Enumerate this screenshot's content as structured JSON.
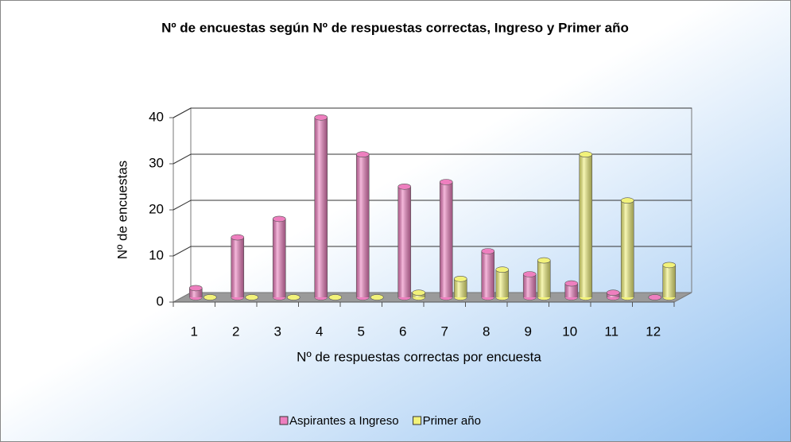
{
  "chart_data": {
    "type": "bar3d",
    "title": "Nº de encuestas según Nº de respuestas correctas, Ingreso y Primer año",
    "x_label": "Nº de respuestas correctas por encuesta",
    "y_label": "Nº de encuestas",
    "categories": [
      "1",
      "2",
      "3",
      "4",
      "5",
      "6",
      "7",
      "8",
      "9",
      "10",
      "11",
      "12"
    ],
    "series": [
      {
        "name": "Aspirantes a Ingreso",
        "color": "#ee7fbf",
        "values": [
          2,
          13,
          17,
          39,
          31,
          24,
          25,
          10,
          5,
          3,
          1,
          0
        ]
      },
      {
        "name": "Primer año",
        "color": "#f2f27a",
        "values": [
          0,
          0,
          0,
          0,
          0,
          1,
          4,
          6,
          8,
          31,
          21,
          7
        ]
      }
    ],
    "ylim": [
      0,
      40
    ],
    "yticks": [
      0,
      10,
      20,
      30,
      40
    ],
    "grid": true,
    "legend": "bottom"
  }
}
